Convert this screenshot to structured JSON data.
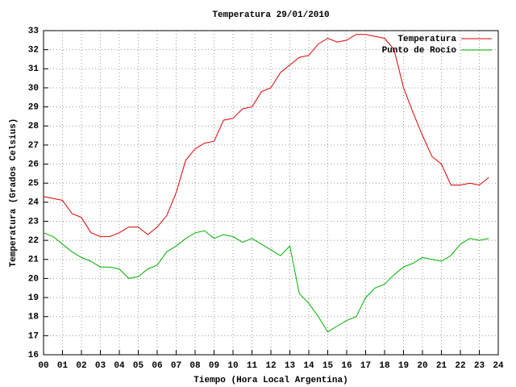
{
  "chart_data": {
    "type": "line",
    "title": "Temperatura 29/01/2010",
    "xlabel": "Tiempo (Hora Local Argentina)",
    "ylabel": "Temperatura (Grados Celsius)",
    "x": [
      0,
      0.5,
      1,
      1.5,
      2,
      2.5,
      3,
      3.5,
      4,
      4.5,
      5,
      5.5,
      6,
      6.5,
      7,
      7.5,
      8,
      8.5,
      9,
      9.5,
      10,
      10.5,
      11,
      11.5,
      12,
      12.5,
      13,
      13.5,
      14,
      14.5,
      15,
      15.5,
      16,
      16.5,
      17,
      17.5,
      18,
      18.5,
      19,
      19.5,
      20,
      20.5,
      21,
      21.5,
      22,
      22.5,
      23,
      23.5
    ],
    "series": [
      {
        "name": "Temperatura",
        "color": "#e00000",
        "values": [
          24.3,
          24.2,
          24.1,
          23.4,
          23.2,
          22.4,
          22.2,
          22.2,
          22.4,
          22.7,
          22.7,
          22.3,
          22.7,
          23.3,
          24.5,
          26.2,
          26.8,
          27.1,
          27.2,
          28.3,
          28.4,
          28.9,
          29.0,
          29.8,
          30.0,
          30.8,
          31.2,
          31.6,
          31.7,
          32.3,
          32.6,
          32.4,
          32.5,
          32.8,
          32.8,
          32.7,
          32.6,
          32.0,
          30.0,
          28.7,
          27.5,
          26.4,
          26.0,
          24.9,
          24.9,
          25.0,
          24.9,
          25.3
        ]
      },
      {
        "name": "Punto de Rocío",
        "color": "#00b000",
        "values": [
          22.4,
          22.2,
          21.8,
          21.4,
          21.1,
          20.9,
          20.6,
          20.6,
          20.5,
          20.0,
          20.1,
          20.5,
          20.7,
          21.4,
          21.7,
          22.1,
          22.4,
          22.5,
          22.1,
          22.3,
          22.2,
          21.9,
          22.1,
          21.8,
          21.5,
          21.2,
          21.7,
          19.2,
          18.7,
          18.0,
          17.2,
          17.5,
          17.8,
          18.0,
          19.0,
          19.5,
          19.7,
          20.2,
          20.6,
          20.8,
          21.1,
          21.0,
          20.9,
          21.2,
          21.8,
          22.1,
          22.0,
          22.1
        ]
      }
    ],
    "xlim": [
      0,
      24
    ],
    "xticks": [
      {
        "value": 0,
        "label": "00"
      },
      {
        "value": 1,
        "label": "01"
      },
      {
        "value": 2,
        "label": "02"
      },
      {
        "value": 3,
        "label": "03"
      },
      {
        "value": 4,
        "label": "04"
      },
      {
        "value": 5,
        "label": "05"
      },
      {
        "value": 6,
        "label": "06"
      },
      {
        "value": 7,
        "label": "07"
      },
      {
        "value": 8,
        "label": "08"
      },
      {
        "value": 9,
        "label": "09"
      },
      10,
      11,
      12,
      13,
      14,
      15,
      16,
      17,
      18,
      19,
      20,
      21,
      22,
      23,
      24
    ],
    "ylim": [
      16,
      33
    ],
    "yticks": [
      16,
      17,
      18,
      19,
      20,
      21,
      22,
      23,
      24,
      25,
      26,
      27,
      28,
      29,
      30,
      31,
      32,
      33
    ],
    "grid": true,
    "legend": "top-right"
  }
}
